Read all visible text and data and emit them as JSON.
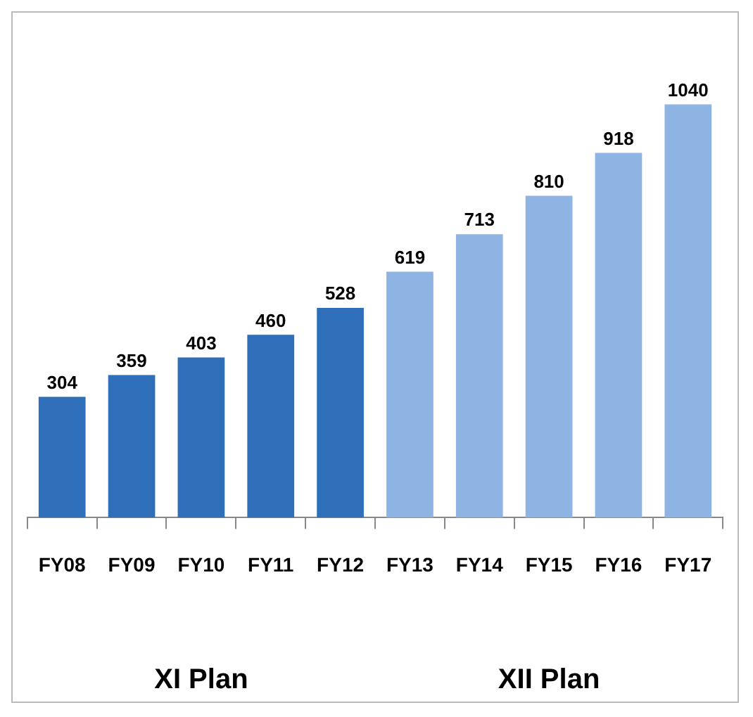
{
  "chart_data": {
    "type": "bar",
    "categories": [
      "FY08",
      "FY09",
      "FY10",
      "FY11",
      "FY12",
      "FY13",
      "FY14",
      "FY15",
      "FY16",
      "FY17"
    ],
    "values": [
      304,
      359,
      403,
      460,
      528,
      619,
      713,
      810,
      918,
      1040
    ],
    "colors": [
      "#2f6fba",
      "#2f6fba",
      "#2f6fba",
      "#2f6fba",
      "#2f6fba",
      "#8db4e2",
      "#8db4e2",
      "#8db4e2",
      "#8db4e2",
      "#8db4e2"
    ],
    "data_labels": true,
    "annotations": [
      "XI Plan",
      "XII Plan"
    ]
  }
}
